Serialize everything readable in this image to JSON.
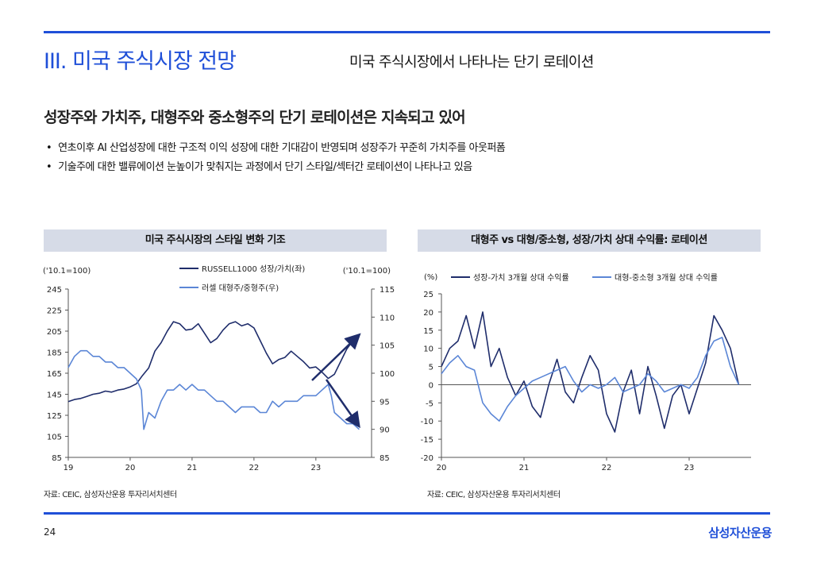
{
  "header": {
    "section_title": "III. 미국 주식시장 전망",
    "subtitle": "미국 주식시장에서 나타나는 단기 로테이션"
  },
  "headline": "성장주와 가치주, 대형주와 중소형주의 단기 로테이션은 지속되고 있어",
  "bullets": [
    "연초이후 AI 산업성장에 대한 구조적 이익 성장에 대한 기대감이 반영되며 성장주가 꾸준히 가치주를 아웃퍼폼",
    "기술주에 대한 밸류에이션 눈높이가 맞춰지는 과정에서 단기 스타일/섹터간 로테이션이 나타나고 있음"
  ],
  "footer": {
    "page_number": "24",
    "brand": "삼성자산운용"
  },
  "colors": {
    "accent": "#1f4fd8",
    "series_dark": "#1f2d6b",
    "series_light": "#5b86d6",
    "title_bar": "#d6dbe7"
  },
  "chart_data": [
    {
      "type": "line",
      "title": "미국 주식시장의 스타일 변화 기조",
      "source": "자료: CEIC, 삼성자산운용 투자리서치센터",
      "left_unit": "('10.1=100)",
      "right_unit": "('10.1=100)",
      "x_ticks": [
        "19",
        "20",
        "21",
        "22",
        "23"
      ],
      "x_range": [
        2019,
        2023.9
      ],
      "left_ylim": [
        85,
        245
      ],
      "left_ticks": [
        85,
        105,
        125,
        145,
        165,
        185,
        205,
        225,
        245
      ],
      "right_ylim": [
        85,
        115
      ],
      "right_ticks": [
        85,
        90,
        95,
        100,
        105,
        110,
        115
      ],
      "series": [
        {
          "name": "RUSSELL1000 성장/가치(좌)",
          "axis": "left",
          "x": [
            2019.0,
            2019.1,
            2019.2,
            2019.3,
            2019.4,
            2019.5,
            2019.6,
            2019.7,
            2019.8,
            2019.9,
            2020.0,
            2020.1,
            2020.2,
            2020.3,
            2020.4,
            2020.5,
            2020.6,
            2020.7,
            2020.8,
            2020.9,
            2021.0,
            2021.1,
            2021.2,
            2021.3,
            2021.4,
            2021.5,
            2021.6,
            2021.7,
            2021.8,
            2021.9,
            2022.0,
            2022.1,
            2022.2,
            2022.3,
            2022.4,
            2022.5,
            2022.6,
            2022.7,
            2022.8,
            2022.9,
            2023.0,
            2023.1,
            2023.2,
            2023.3,
            2023.4,
            2023.5,
            2023.6,
            2023.7
          ],
          "values": [
            138,
            140,
            141,
            143,
            145,
            146,
            148,
            147,
            149,
            150,
            152,
            155,
            163,
            170,
            186,
            194,
            205,
            214,
            212,
            206,
            207,
            212,
            203,
            194,
            198,
            206,
            212,
            214,
            210,
            212,
            208,
            196,
            184,
            174,
            178,
            180,
            186,
            181,
            176,
            170,
            171,
            166,
            160,
            164,
            176,
            188,
            196,
            200
          ]
        },
        {
          "name": "러셀 대형주/중형주(우)",
          "axis": "right",
          "x": [
            2019.0,
            2019.1,
            2019.2,
            2019.3,
            2019.4,
            2019.5,
            2019.6,
            2019.7,
            2019.8,
            2019.9,
            2020.0,
            2020.1,
            2020.18,
            2020.22,
            2020.3,
            2020.4,
            2020.5,
            2020.6,
            2020.7,
            2020.8,
            2020.9,
            2021.0,
            2021.1,
            2021.2,
            2021.3,
            2021.4,
            2021.5,
            2021.6,
            2021.7,
            2021.8,
            2021.9,
            2022.0,
            2022.1,
            2022.2,
            2022.3,
            2022.4,
            2022.5,
            2022.6,
            2022.7,
            2022.8,
            2022.9,
            2023.0,
            2023.1,
            2023.2,
            2023.25,
            2023.3,
            2023.4,
            2023.5,
            2023.6,
            2023.7
          ],
          "values": [
            101,
            103,
            104,
            104,
            103,
            103,
            102,
            102,
            101,
            101,
            100,
            99,
            97,
            90,
            93,
            92,
            95,
            97,
            97,
            98,
            97,
            98,
            97,
            97,
            96,
            95,
            95,
            94,
            93,
            94,
            94,
            94,
            93,
            93,
            95,
            94,
            95,
            95,
            95,
            96,
            96,
            96,
            97,
            98,
            96,
            93,
            92,
            91,
            91,
            90
          ]
        }
      ]
    },
    {
      "type": "line",
      "title": "대형주 vs 대형/중소형, 성장/가치 상대 수익률: 로테이션",
      "source": "자료: CEIC, 삼성자산운용 투자리서치센터",
      "y_unit": "(%)",
      "x_ticks": [
        "20",
        "21",
        "22",
        "23"
      ],
      "x_range": [
        2020,
        2023.75
      ],
      "ylim": [
        -20,
        25
      ],
      "y_ticks": [
        25,
        20,
        15,
        10,
        5,
        0,
        -5,
        -10,
        -15,
        -20
      ],
      "series": [
        {
          "name": "성장-가치 3개월 상대 수익률",
          "x": [
            2020.0,
            2020.1,
            2020.2,
            2020.3,
            2020.4,
            2020.5,
            2020.6,
            2020.7,
            2020.8,
            2020.9,
            2021.0,
            2021.1,
            2021.2,
            2021.3,
            2021.4,
            2021.5,
            2021.6,
            2021.7,
            2021.8,
            2021.9,
            2022.0,
            2022.1,
            2022.2,
            2022.3,
            2022.4,
            2022.5,
            2022.6,
            2022.7,
            2022.8,
            2022.9,
            2023.0,
            2023.1,
            2023.2,
            2023.3,
            2023.4,
            2023.5,
            2023.6
          ],
          "values": [
            5,
            10,
            12,
            19,
            10,
            20,
            5,
            10,
            2,
            -3,
            1,
            -6,
            -9,
            0,
            7,
            -2,
            -5,
            2,
            8,
            4,
            -8,
            -13,
            -2,
            4,
            -8,
            5,
            -3,
            -12,
            -3,
            0,
            -8,
            -1,
            6,
            19,
            15,
            10,
            0
          ]
        },
        {
          "name": "대형-중소형 3개월 상대 수익률",
          "x": [
            2020.0,
            2020.1,
            2020.2,
            2020.3,
            2020.4,
            2020.5,
            2020.6,
            2020.7,
            2020.8,
            2020.9,
            2021.0,
            2021.1,
            2021.2,
            2021.3,
            2021.4,
            2021.5,
            2021.6,
            2021.7,
            2021.8,
            2021.9,
            2022.0,
            2022.1,
            2022.2,
            2022.3,
            2022.4,
            2022.5,
            2022.6,
            2022.7,
            2022.8,
            2022.9,
            2023.0,
            2023.1,
            2023.2,
            2023.3,
            2023.4,
            2023.5,
            2023.6
          ],
          "values": [
            3,
            6,
            8,
            5,
            4,
            -5,
            -8,
            -10,
            -6,
            -3,
            -1,
            1,
            2,
            3,
            4,
            5,
            1,
            -2,
            0,
            -1,
            0,
            2,
            -2,
            -1,
            0,
            3,
            1,
            -2,
            -1,
            0,
            -1,
            2,
            8,
            12,
            13,
            5,
            0
          ]
        }
      ]
    }
  ]
}
